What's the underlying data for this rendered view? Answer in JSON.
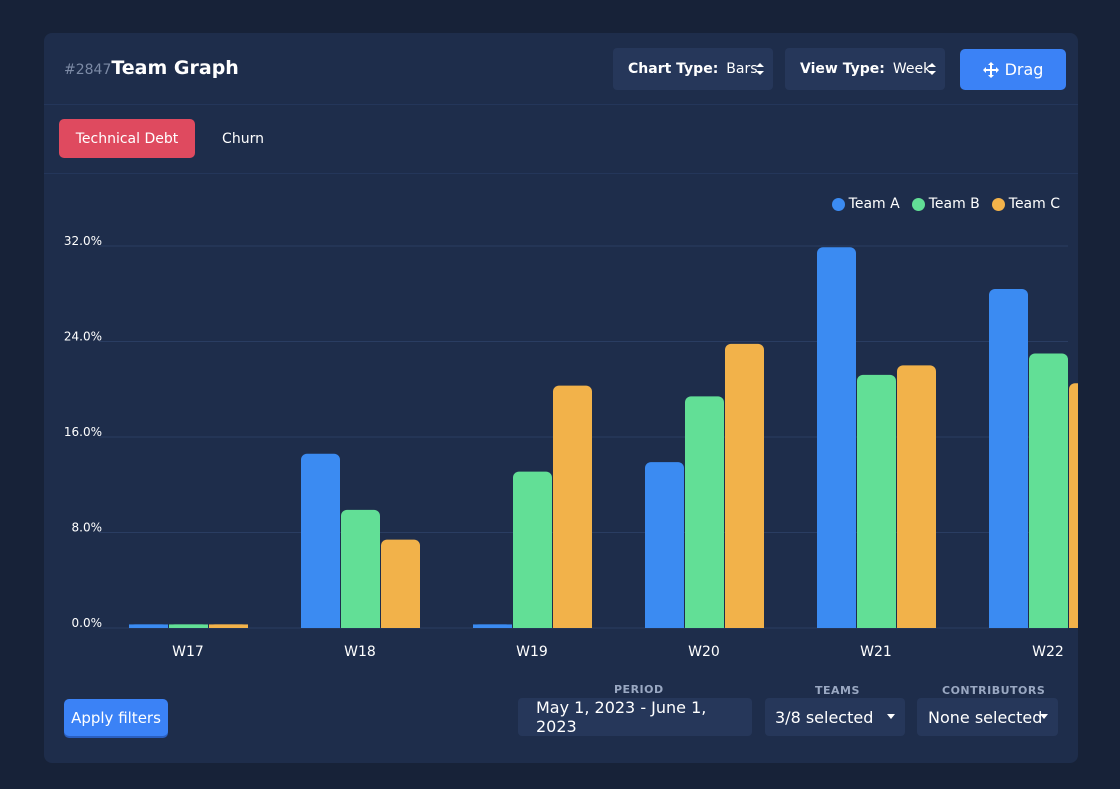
{
  "header": {
    "id_label": "#2847",
    "title": "Team Graph",
    "chart_type": {
      "label": "Chart Type:",
      "value": "Bars"
    },
    "view_type": {
      "label": "View Type:",
      "value": "Week"
    },
    "drag_label": "Drag"
  },
  "tabs": [
    {
      "label": "Technical Debt",
      "active": true
    },
    {
      "label": "Churn",
      "active": false
    }
  ],
  "filters": {
    "apply_label": "Apply filters",
    "period": {
      "label": "PERIOD",
      "value": "May 1, 2023 - June 1, 2023"
    },
    "teams": {
      "label": "TEAMS",
      "value": "3/8 selected"
    },
    "contributors": {
      "label": "CONTRIBUTORS",
      "value": "None selected"
    }
  },
  "colors": {
    "team_a": "#3b8bf2",
    "team_b": "#62df96",
    "team_c": "#f2b24a",
    "accent": "#df4a5f"
  },
  "chart_data": {
    "type": "bar",
    "categories": [
      "W17",
      "W18",
      "W19",
      "W20",
      "W21",
      "W22"
    ],
    "series": [
      {
        "name": "Team A",
        "values": [
          0.3,
          14.6,
          0.3,
          13.9,
          31.9,
          28.4
        ]
      },
      {
        "name": "Team B",
        "values": [
          0.3,
          9.9,
          13.1,
          19.4,
          21.2,
          23.0
        ]
      },
      {
        "name": "Team C",
        "values": [
          0.3,
          7.4,
          20.3,
          23.8,
          22.0,
          20.5
        ]
      }
    ],
    "yticks": [
      "0.0%",
      "8.0%",
      "16.0%",
      "24.0%",
      "32.0%"
    ],
    "ylim": [
      0,
      32
    ],
    "legend": "top-right",
    "grid": true
  }
}
